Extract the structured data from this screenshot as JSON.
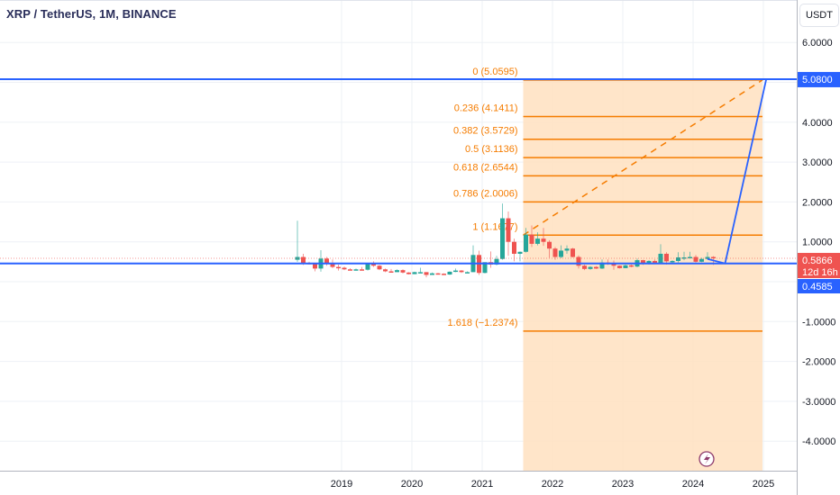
{
  "header": {
    "title": "XRP / TetherUS, 1M, BINANCE",
    "unit_button": "USDT"
  },
  "colors": {
    "up": "#26a69a",
    "down": "#ef5350",
    "fib": "#f57c00",
    "fib_fill": "#ffe0bf",
    "horizontal_line": "#2962ff",
    "grid": "#eef1f6"
  },
  "price_tags": {
    "level_top": "5.0800",
    "last_price": "0.5866",
    "countdown": "12d 16h",
    "level_bottom": "0.4585"
  },
  "icons": {
    "bottom": "lightning-icon"
  },
  "chart_data": {
    "type": "candlestick",
    "interval": "1M",
    "ylim": [
      -4.75,
      7.07
    ],
    "y_ticks": [
      "6.0000",
      "4.0000",
      "3.0000",
      "2.0000",
      "1.0000",
      "-1.0000",
      "-2.0000",
      "-3.0000",
      "-4.0000"
    ],
    "x_ticks": [
      "2019",
      "2020",
      "2021",
      "2022",
      "2023",
      "2024",
      "2025"
    ],
    "grid": true,
    "start_month": "2018-05",
    "ohlc": [
      [
        0.55,
        1.53,
        0.5,
        0.62
      ],
      [
        0.62,
        0.7,
        0.42,
        0.47
      ],
      [
        0.47,
        0.5,
        0.43,
        0.44
      ],
      [
        0.44,
        0.45,
        0.26,
        0.33
      ],
      [
        0.33,
        0.79,
        0.25,
        0.58
      ],
      [
        0.58,
        0.62,
        0.4,
        0.46
      ],
      [
        0.46,
        0.56,
        0.34,
        0.37
      ],
      [
        0.37,
        0.43,
        0.28,
        0.35
      ],
      [
        0.35,
        0.38,
        0.29,
        0.31
      ],
      [
        0.31,
        0.34,
        0.29,
        0.3
      ],
      [
        0.3,
        0.33,
        0.3,
        0.31
      ],
      [
        0.31,
        0.37,
        0.28,
        0.3
      ],
      [
        0.3,
        0.47,
        0.28,
        0.45
      ],
      [
        0.45,
        0.51,
        0.37,
        0.4
      ],
      [
        0.4,
        0.42,
        0.29,
        0.31
      ],
      [
        0.31,
        0.33,
        0.24,
        0.26
      ],
      [
        0.26,
        0.32,
        0.23,
        0.24
      ],
      [
        0.24,
        0.31,
        0.24,
        0.29
      ],
      [
        0.29,
        0.31,
        0.21,
        0.23
      ],
      [
        0.23,
        0.24,
        0.18,
        0.19
      ],
      [
        0.19,
        0.25,
        0.19,
        0.24
      ],
      [
        0.24,
        0.35,
        0.23,
        0.24
      ],
      [
        0.24,
        0.24,
        0.11,
        0.17
      ],
      [
        0.17,
        0.23,
        0.17,
        0.21
      ],
      [
        0.21,
        0.22,
        0.18,
        0.2
      ],
      [
        0.2,
        0.21,
        0.17,
        0.18
      ],
      [
        0.18,
        0.26,
        0.17,
        0.25
      ],
      [
        0.25,
        0.33,
        0.24,
        0.28
      ],
      [
        0.28,
        0.29,
        0.22,
        0.24
      ],
      [
        0.24,
        0.26,
        0.23,
        0.24
      ],
      [
        0.24,
        0.91,
        0.24,
        0.67
      ],
      [
        0.67,
        0.78,
        0.17,
        0.22
      ],
      [
        0.22,
        0.42,
        0.21,
        0.49
      ],
      [
        0.49,
        0.76,
        0.35,
        0.43
      ],
      [
        0.43,
        0.65,
        0.41,
        0.57
      ],
      [
        0.57,
        1.96,
        0.55,
        1.59
      ],
      [
        1.59,
        1.76,
        0.65,
        1.0
      ],
      [
        1.0,
        1.08,
        0.51,
        0.7
      ],
      [
        0.7,
        0.76,
        0.51,
        0.75
      ],
      [
        0.75,
        1.35,
        0.73,
        1.18
      ],
      [
        1.18,
        1.41,
        0.87,
        0.95
      ],
      [
        0.95,
        1.24,
        0.91,
        1.08
      ],
      [
        1.08,
        1.35,
        0.9,
        1.0
      ],
      [
        1.0,
        1.04,
        0.6,
        0.83
      ],
      [
        0.83,
        0.87,
        0.55,
        0.62
      ],
      [
        0.62,
        0.91,
        0.59,
        0.78
      ],
      [
        0.78,
        0.91,
        0.7,
        0.83
      ],
      [
        0.83,
        0.85,
        0.61,
        0.62
      ],
      [
        0.62,
        0.66,
        0.33,
        0.4
      ],
      [
        0.4,
        0.43,
        0.29,
        0.32
      ],
      [
        0.32,
        0.39,
        0.3,
        0.37
      ],
      [
        0.37,
        0.39,
        0.32,
        0.33
      ],
      [
        0.33,
        0.56,
        0.32,
        0.48
      ],
      [
        0.48,
        0.56,
        0.42,
        0.46
      ],
      [
        0.46,
        0.53,
        0.3,
        0.4
      ],
      [
        0.4,
        0.41,
        0.33,
        0.34
      ],
      [
        0.34,
        0.43,
        0.34,
        0.41
      ],
      [
        0.41,
        0.43,
        0.36,
        0.38
      ],
      [
        0.38,
        0.58,
        0.36,
        0.54
      ],
      [
        0.54,
        0.55,
        0.42,
        0.47
      ],
      [
        0.47,
        0.54,
        0.43,
        0.52
      ],
      [
        0.52,
        0.56,
        0.46,
        0.47
      ],
      [
        0.47,
        0.94,
        0.46,
        0.7
      ],
      [
        0.7,
        0.74,
        0.43,
        0.51
      ],
      [
        0.51,
        0.54,
        0.47,
        0.52
      ],
      [
        0.52,
        0.74,
        0.48,
        0.61
      ],
      [
        0.61,
        0.75,
        0.54,
        0.61
      ],
      [
        0.61,
        0.75,
        0.59,
        0.62
      ],
      [
        0.62,
        0.67,
        0.48,
        0.5
      ],
      [
        0.5,
        0.6,
        0.49,
        0.57
      ],
      [
        0.57,
        0.74,
        0.56,
        0.62
      ],
      [
        0.62,
        0.64,
        0.42,
        0.5866
      ]
    ],
    "horizontal_lines": [
      5.08,
      0.4585
    ],
    "last_price": 0.5866,
    "fib_retracement": {
      "from": {
        "month": "2021-08",
        "price": 1.1677
      },
      "to": {
        "month": "2025-01",
        "price": 5.0595
      },
      "levels": [
        {
          "ratio": 0,
          "price": 5.0595,
          "label": "0 (5.0595)"
        },
        {
          "ratio": 0.236,
          "price": 4.1411,
          "label": "0.236 (4.1411)"
        },
        {
          "ratio": 0.382,
          "price": 3.5729,
          "label": "0.382 (3.5729)"
        },
        {
          "ratio": 0.5,
          "price": 3.1136,
          "label": "0.5 (3.1136)"
        },
        {
          "ratio": 0.618,
          "price": 2.6544,
          "label": "0.618 (2.6544)"
        },
        {
          "ratio": 0.786,
          "price": 2.0006,
          "label": "0.786 (2.0006)"
        },
        {
          "ratio": 1,
          "price": 1.1677,
          "label": "1 (1.1677)"
        },
        {
          "ratio": 1.618,
          "price": -1.2374,
          "label": "1.618 (−1.2374)"
        }
      ]
    },
    "projection_path": [
      {
        "month": "2024-03",
        "price": 0.57
      },
      {
        "month": "2024-06",
        "price": 0.4585
      },
      {
        "month": "2025-01",
        "price": 5.0595
      }
    ]
  }
}
